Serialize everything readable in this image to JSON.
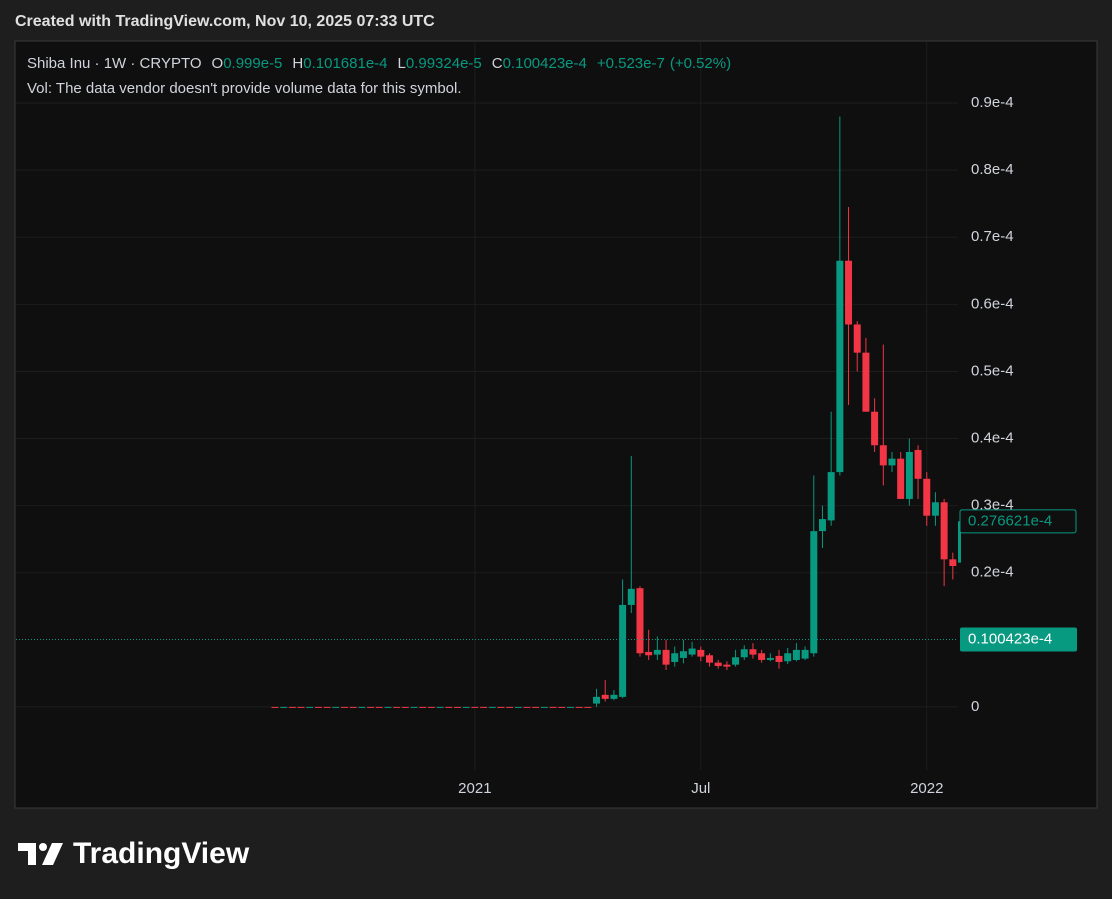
{
  "header": "Created with TradingView.com, Nov 10, 2025 07:33 UTC",
  "brand": "TradingView",
  "chart_data": {
    "type": "candlestick",
    "legend": {
      "symbol": "Shiba Inu · 1W · CRYPTO",
      "open": {
        "key": "O",
        "value": 9.99e-06,
        "label": "0.999e-5"
      },
      "high": {
        "key": "H",
        "value": 1.01681e-05,
        "label": "0.101681e-4"
      },
      "low": {
        "key": "L",
        "value": 9.9324e-06,
        "label": "0.99324e-5"
      },
      "close": {
        "key": "C",
        "value": 1.00423e-05,
        "label": "0.100423e-4"
      },
      "change": {
        "value": 5.23e-08,
        "label": "+0.523e-7"
      },
      "change_percent": {
        "value": 0.52,
        "label": "(+0.52%)"
      },
      "volume_note": "Vol: The data vendor doesn't provide volume data for this symbol."
    },
    "up_color": "#089981",
    "down_color": "#f23645",
    "categories": [
      null,
      null,
      null,
      null,
      null,
      null,
      null,
      null,
      null,
      null,
      null,
      null,
      null,
      null,
      null,
      null,
      null,
      null,
      null,
      null,
      null,
      null,
      null,
      "2021",
      null,
      null,
      null,
      null,
      null,
      null,
      null,
      null,
      null,
      null,
      null,
      null,
      null,
      null,
      null,
      null,
      null,
      null,
      null,
      null,
      null,
      null,
      null,
      null,
      null,
      "Jul",
      null,
      null,
      null,
      null,
      null,
      null,
      null,
      null,
      null,
      null,
      null,
      null,
      null,
      null,
      null,
      null,
      null,
      null,
      null,
      null,
      null,
      null,
      null,
      null,
      null,
      "2022",
      null,
      null,
      null,
      null
    ],
    "open": [
      3e-09,
      2e-09,
      3e-09,
      3e-09,
      2e-09,
      3e-09,
      3e-09,
      2e-09,
      3e-09,
      3e-09,
      2e-09,
      3e-09,
      3e-09,
      2e-09,
      3e-09,
      3e-09,
      2e-09,
      3e-09,
      3e-09,
      2e-09,
      3e-09,
      3e-09,
      2e-09,
      3e-09,
      3e-09,
      2e-09,
      3e-09,
      3e-09,
      2e-09,
      3e-09,
      3e-09,
      2e-09,
      3e-09,
      3e-09,
      2e-09,
      3e-09,
      3e-09,
      5e-07,
      1.8e-06,
      1.2e-06,
      1.5e-06,
      1.52e-05,
      1.77e-05,
      8.2e-06,
      7.8e-06,
      8.5e-06,
      6.7e-06,
      7.3e-06,
      7.8e-06,
      8.5e-06,
      7.7e-06,
      6.6e-06,
      6.3e-06,
      6.3e-06,
      7.4e-06,
      8.6e-06,
      8e-06,
      7e-06,
      7.6e-06,
      6.8e-06,
      7e-06,
      7.2e-06,
      8e-06,
      2.62e-05,
      2.78e-05,
      3.5e-05,
      6.65e-05,
      5.7e-05,
      5.28e-05,
      4.4e-05,
      3.9e-05,
      3.6e-05,
      3.7e-05,
      3.1e-05,
      3.83e-05,
      3.4e-05,
      2.85e-05,
      3.05e-05,
      2.2e-05,
      2.15e-05
    ],
    "high": [
      4e-09,
      4e-09,
      4e-09,
      4e-09,
      4e-09,
      4e-09,
      4e-09,
      4e-09,
      4e-09,
      4e-09,
      4e-09,
      4e-09,
      4e-09,
      4e-09,
      4e-09,
      4e-09,
      4e-09,
      4e-09,
      4e-09,
      4e-09,
      4e-09,
      4e-09,
      4e-09,
      4e-09,
      4e-09,
      4e-09,
      4e-09,
      4e-09,
      4e-09,
      4e-09,
      4e-09,
      4e-09,
      4e-09,
      4e-09,
      4e-09,
      4e-09,
      4e-09,
      2.7e-06,
      4e-06,
      2.5e-06,
      1.9e-05,
      3.74e-05,
      1.8e-05,
      1.15e-05,
      1.05e-05,
      1e-05,
      9e-06,
      1e-05,
      9.7e-06,
      9e-06,
      8e-06,
      7e-06,
      6.8e-06,
      8.5e-06,
      9.2e-06,
      9.5e-06,
      8.5e-06,
      8e-06,
      8.5e-06,
      8.8e-06,
      9.5e-06,
      9e-06,
      3.45e-05,
      3e-05,
      4.4e-05,
      8.8e-05,
      7.45e-05,
      5.75e-05,
      5.5e-05,
      4.6e-05,
      5.4e-05,
      3.8e-05,
      3.8e-05,
      4e-05,
      3.9e-05,
      3.5e-05,
      3.2e-05,
      3.1e-05,
      2.3e-05,
      2.9e-05
    ],
    "low": [
      1e-09,
      1e-09,
      1e-09,
      1e-09,
      1e-09,
      1e-09,
      1e-09,
      1e-09,
      1e-09,
      1e-09,
      1e-09,
      1e-09,
      1e-09,
      1e-09,
      1e-09,
      1e-09,
      1e-09,
      1e-09,
      1e-09,
      1e-09,
      1e-09,
      1e-09,
      1e-09,
      1e-09,
      1e-09,
      1e-09,
      1e-09,
      1e-09,
      1e-09,
      1e-09,
      1e-09,
      1e-09,
      1e-09,
      1e-09,
      1e-09,
      1e-09,
      1e-09,
      0,
      8e-07,
      1e-06,
      1.3e-06,
      1.4e-05,
      7.5e-06,
      7e-06,
      7e-06,
      5.5e-06,
      6e-06,
      6.5e-06,
      7.5e-06,
      6.8e-06,
      6e-06,
      5.7e-06,
      5.5e-06,
      6e-06,
      7e-06,
      7.2e-06,
      6.6e-06,
      6.8e-06,
      5.7e-06,
      6.4e-06,
      6.8e-06,
      7e-06,
      7.5e-06,
      2.37e-05,
      2.7e-05,
      3.45e-05,
      4.5e-05,
      5e-05,
      4.4e-05,
      3.8e-05,
      3.3e-05,
      3.5e-05,
      3.1e-05,
      3e-05,
      3.1e-05,
      2.7e-05,
      2.7e-05,
      1.8e-05,
      1.9e-05,
      2e-05
    ],
    "close": [
      2e-09,
      3e-09,
      2e-09,
      2e-09,
      3e-09,
      2e-09,
      2e-09,
      3e-09,
      2e-09,
      2e-09,
      3e-09,
      2e-09,
      2e-09,
      3e-09,
      2e-09,
      2e-09,
      3e-09,
      2e-09,
      2e-09,
      3e-09,
      2e-09,
      2e-09,
      3e-09,
      2e-09,
      2e-09,
      3e-09,
      2e-09,
      2e-09,
      3e-09,
      2e-09,
      2e-09,
      3e-09,
      2e-09,
      2e-09,
      3e-09,
      2e-09,
      2e-09,
      1.5e-06,
      1.2e-06,
      1.8e-06,
      1.52e-05,
      1.76e-05,
      8e-06,
      7.7e-06,
      8.5e-06,
      6.3e-06,
      8e-06,
      8.3e-06,
      8.7e-06,
      7.5e-06,
      6.6e-06,
      6.1e-06,
      6e-06,
      7.4e-06,
      8.6e-06,
      7.8e-06,
      7e-06,
      7.3e-06,
      6.7e-06,
      8e-06,
      8.5e-06,
      8.5e-06,
      2.62e-05,
      2.8e-05,
      3.5e-05,
      6.65e-05,
      5.7e-05,
      5.28e-05,
      4.4e-05,
      3.9e-05,
      3.6e-05,
      3.7e-05,
      3.1e-05,
      3.8e-05,
      3.4e-05,
      2.85e-05,
      3.05e-05,
      2.2e-05,
      2.1e-05,
      2.76621e-05
    ],
    "ylim": [
      -9.4e-06,
      9.91e-05
    ],
    "yticks": [
      0,
      {
        "value": 2e-05,
        "label": "0.2e-4"
      },
      {
        "value": 3e-05,
        "label": "0.3e-4"
      },
      {
        "value": 4e-05,
        "label": "0.4e-4"
      },
      {
        "value": 5e-05,
        "label": "0.5e-4"
      },
      {
        "value": 6e-05,
        "label": "0.6e-4"
      },
      {
        "value": 7e-05,
        "label": "0.7e-4"
      },
      {
        "value": 8e-05,
        "label": "0.8e-4"
      },
      {
        "value": 9e-05,
        "label": "0.9e-4"
      }
    ],
    "grid": true,
    "last_close_marker": {
      "value": 2.76621e-05,
      "label": "0.276621e-4"
    },
    "current_price_line": {
      "value": 1.00423e-05,
      "label": "0.100423e-4"
    }
  }
}
